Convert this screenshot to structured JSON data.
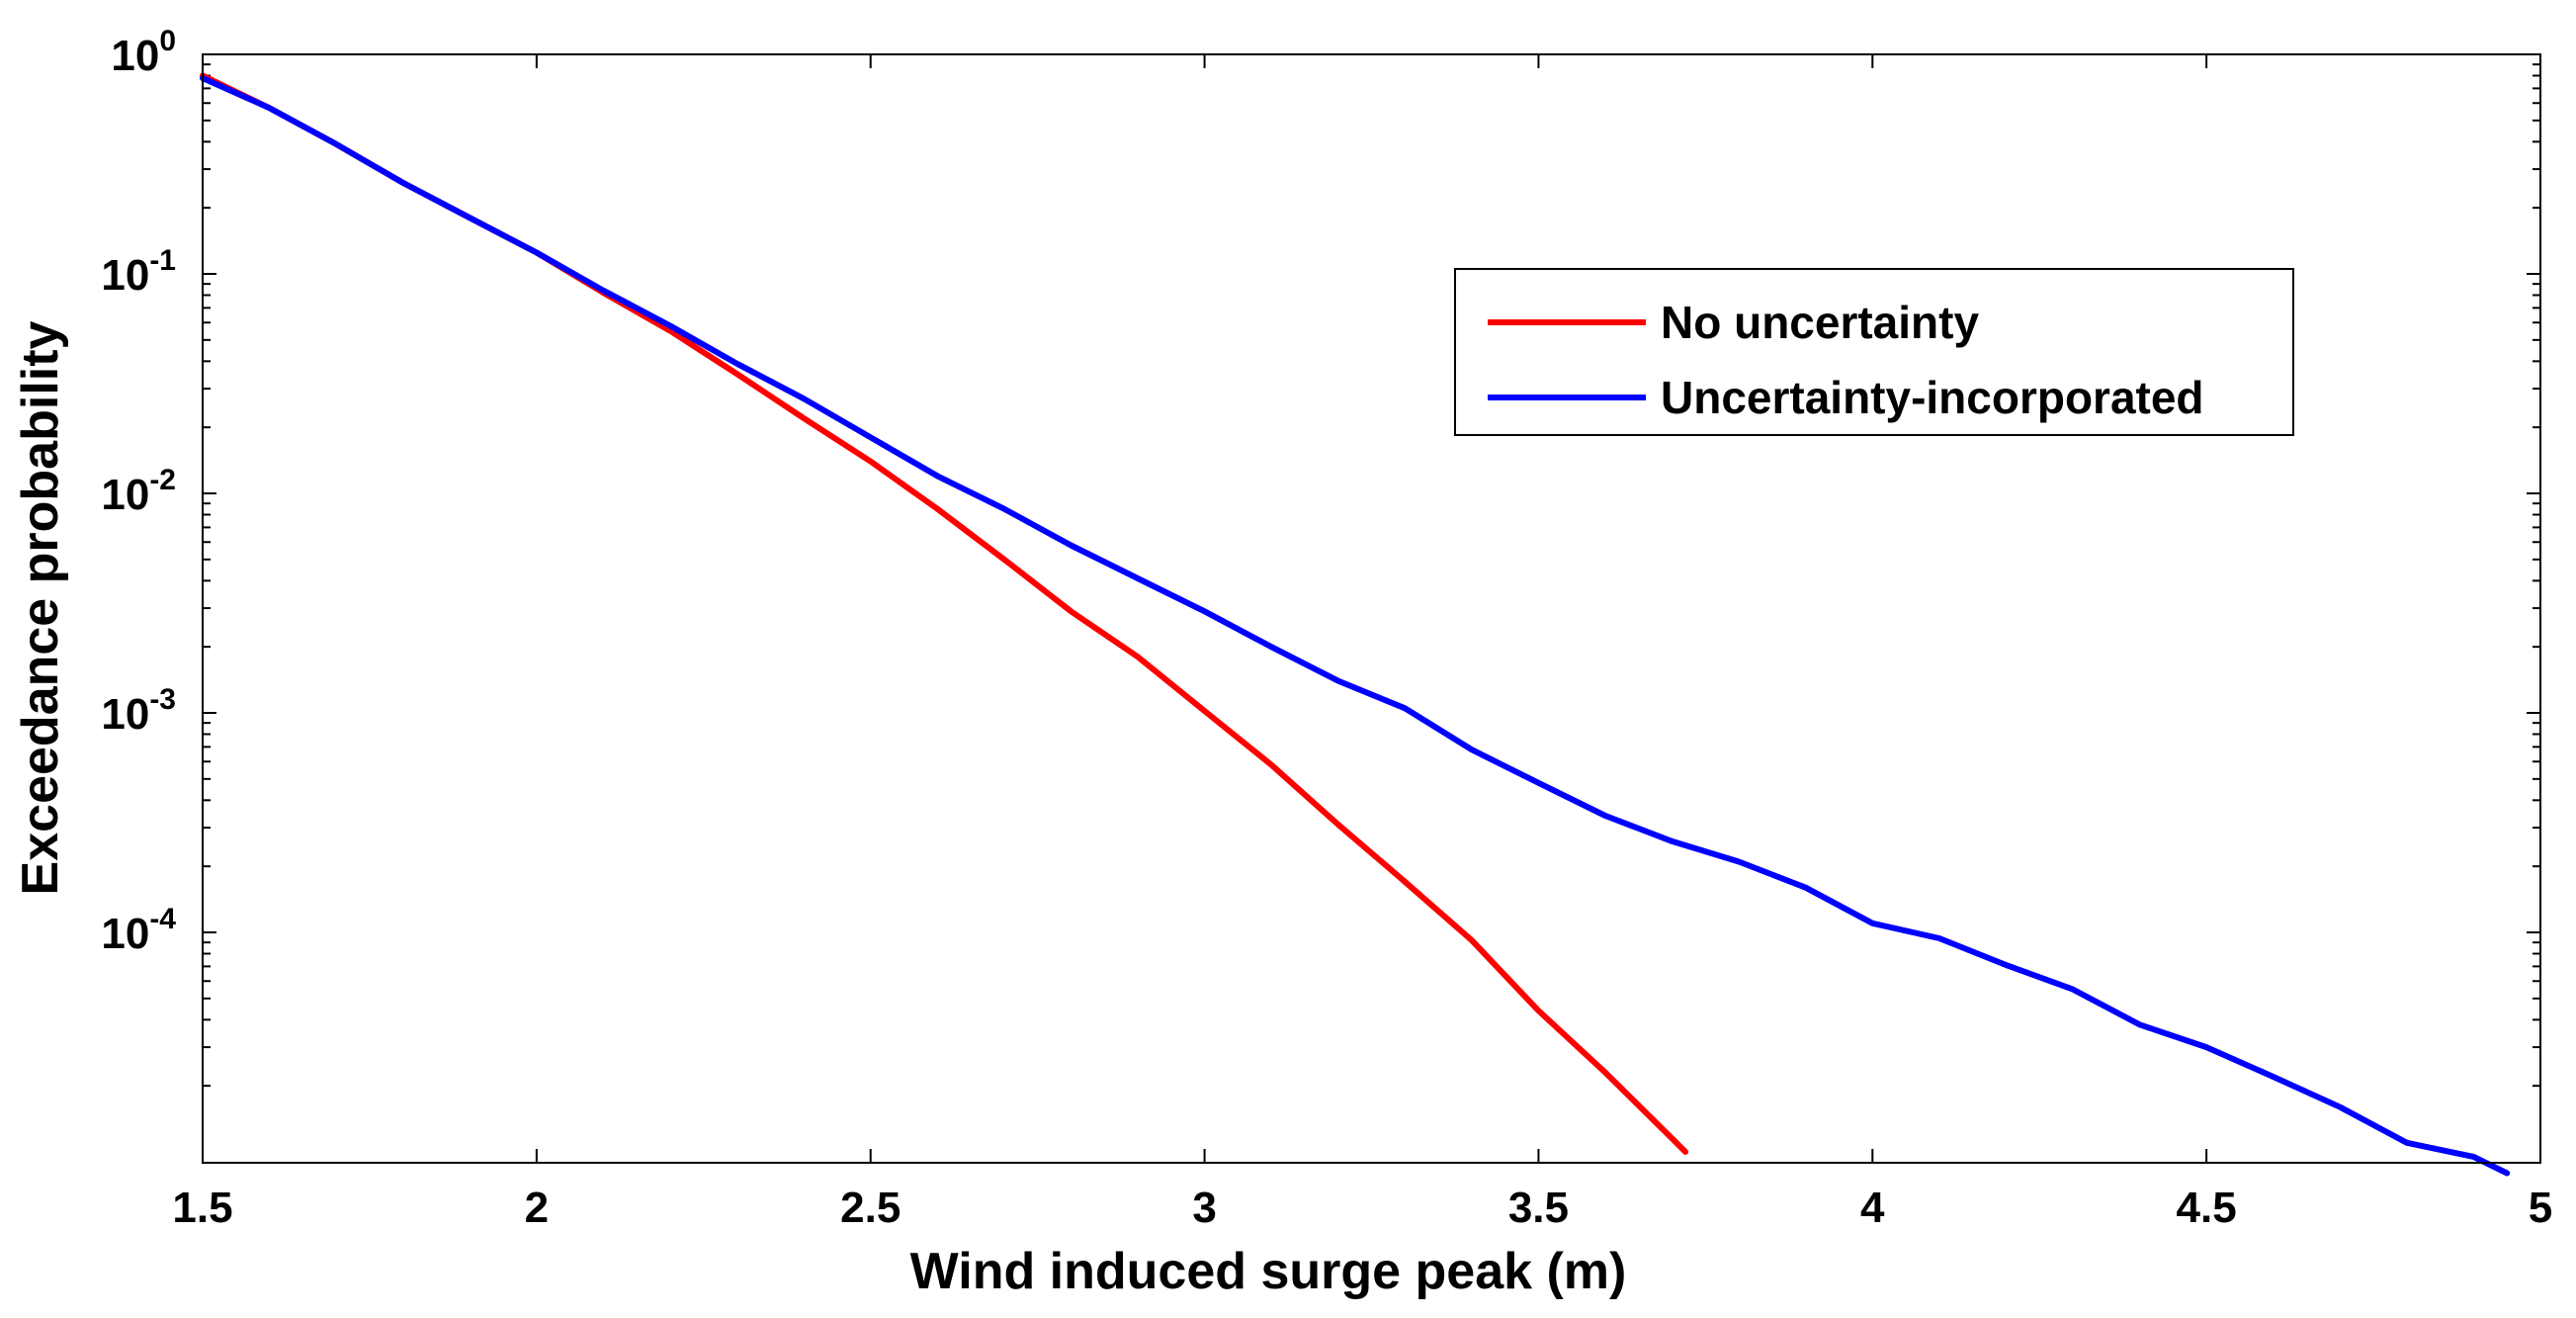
{
  "chart_data": {
    "type": "line",
    "title": "",
    "xlabel": "Wind induced surge peak (m)",
    "ylabel": "Exceedance probability",
    "xlim": [
      1.5,
      5
    ],
    "ylim": [
      1e-05,
      1
    ],
    "yscale": "log",
    "x_ticks": [
      1.5,
      2,
      2.5,
      3,
      3.5,
      4,
      4.5,
      5
    ],
    "x_tick_labels": [
      "1.5",
      "2",
      "2.5",
      "3",
      "3.5",
      "4",
      "4.5",
      "5"
    ],
    "y_ticks": [
      1,
      0.1,
      0.01,
      0.001,
      0.0001
    ],
    "y_tick_labels": [
      {
        "base": "10",
        "exp": "0"
      },
      {
        "base": "10",
        "exp": "-1"
      },
      {
        "base": "10",
        "exp": "-2"
      },
      {
        "base": "10",
        "exp": "-3"
      },
      {
        "base": "10",
        "exp": "-4"
      }
    ],
    "legend_position": "upper-right",
    "series": [
      {
        "name": "No uncertainty",
        "color": "#ff0000",
        "x": [
          1.5,
          1.6,
          1.7,
          1.8,
          1.9,
          2.0,
          2.1,
          2.2,
          2.3,
          2.4,
          2.5,
          2.6,
          2.7,
          2.8,
          2.9,
          3.0,
          3.1,
          3.2,
          3.3,
          3.4,
          3.5,
          3.6,
          3.7,
          3.72
        ],
        "y": [
          0.8,
          0.57,
          0.39,
          0.26,
          0.18,
          0.125,
          0.082,
          0.055,
          0.035,
          0.022,
          0.014,
          0.0085,
          0.005,
          0.0029,
          0.0018,
          0.00102,
          0.00058,
          0.00031,
          0.00017,
          9.2e-05,
          4.4e-05,
          2.3e-05,
          1.15e-05,
          1e-05
        ]
      },
      {
        "name": "Uncertainty-incorporated",
        "color": "#0000ff",
        "x": [
          1.5,
          1.6,
          1.7,
          1.8,
          1.9,
          2.0,
          2.1,
          2.2,
          2.3,
          2.4,
          2.5,
          2.6,
          2.7,
          2.8,
          2.9,
          3.0,
          3.1,
          3.2,
          3.3,
          3.4,
          3.5,
          3.6,
          3.7,
          3.8,
          3.9,
          4.0,
          4.1,
          4.2,
          4.3,
          4.4,
          4.5,
          4.6,
          4.7,
          4.8,
          4.9,
          4.95
        ],
        "y": [
          0.78,
          0.57,
          0.39,
          0.26,
          0.18,
          0.125,
          0.084,
          0.058,
          0.039,
          0.027,
          0.018,
          0.012,
          0.0085,
          0.0058,
          0.0041,
          0.0029,
          0.002,
          0.0014,
          0.00105,
          0.00068,
          0.00048,
          0.00034,
          0.00026,
          0.00021,
          0.00016,
          0.00011,
          9.4e-05,
          7.1e-05,
          5.5e-05,
          3.8e-05,
          3e-05,
          2.2e-05,
          1.6e-05,
          1.1e-05,
          9.5e-06,
          8e-06
        ]
      }
    ]
  }
}
